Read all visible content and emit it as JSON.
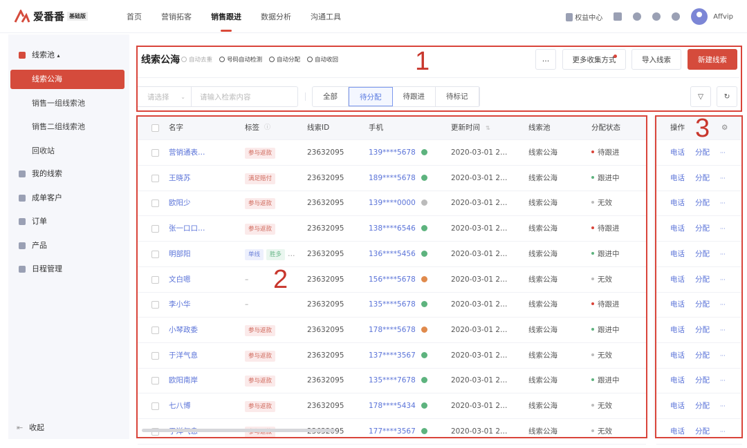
{
  "topbar": {
    "brand": "爱番番",
    "edition": "基础版",
    "nav": [
      "首页",
      "营销拓客",
      "销售跟进",
      "数据分析",
      "沟通工具"
    ],
    "active_nav": 2,
    "rights": "权益中心",
    "user": "Affvip"
  },
  "sidebar": {
    "group": "线索池",
    "group_caret": "▴",
    "subitems": [
      "线索公海",
      "销售一组线索池",
      "销售二组线索池",
      "回收站"
    ],
    "items": [
      "我的线索",
      "成单客户",
      "订单",
      "产品",
      "日程管理"
    ],
    "collapse": "收起"
  },
  "header": {
    "title": "线索公海",
    "features": [
      "自动去重",
      "号码自动检测",
      "自动分配",
      "自动收回"
    ],
    "more": "…",
    "more_collect": "更多收集方式",
    "import": "导入线索",
    "create": "新建线索"
  },
  "filter": {
    "select_placeholder": "请选择",
    "search_placeholder": "请输入检索内容",
    "tabs": [
      "全部",
      "待分配",
      "待跟进",
      "待标记"
    ],
    "active_tab": 1
  },
  "table": {
    "columns": [
      "名字",
      "标签",
      "线索ID",
      "手机",
      "更新时间",
      "线索池",
      "分配状态"
    ],
    "rows": [
      {
        "name": "营销通表…",
        "tags": [
          "参与返款"
        ],
        "id": "23632095",
        "phone": "139****5678",
        "phone_status": "valid",
        "time": "2020-03-01 2…",
        "pool": "线索公海",
        "status": "待跟进"
      },
      {
        "name": "王晓苏",
        "tags": [
          "满足赔付"
        ],
        "id": "23632095",
        "phone": "189****5678",
        "phone_status": "valid",
        "time": "2020-03-01 2…",
        "pool": "线索公海",
        "status": "跟进中"
      },
      {
        "name": "欧阳少",
        "tags": [
          "参与返款"
        ],
        "id": "23632095",
        "phone": "139****0000",
        "phone_status": "invalid",
        "time": "2020-03-01 2…",
        "pool": "线索公海",
        "status": "无效"
      },
      {
        "name": "张一口口…",
        "tags": [
          "参与返款"
        ],
        "id": "23632095",
        "phone": "138****6546",
        "phone_status": "valid",
        "time": "2020-03-01 2…",
        "pool": "线索公海",
        "status": "待跟进"
      },
      {
        "name": "明部阳",
        "tags": [
          "单线",
          "胜多",
          "…"
        ],
        "id": "23632095",
        "phone": "136****5456",
        "phone_status": "valid",
        "time": "2020-03-01 2…",
        "pool": "线索公海",
        "status": "跟进中"
      },
      {
        "name": "文白嗯",
        "tags": [
          "–"
        ],
        "id": "23632095",
        "phone": "156****5678",
        "phone_status": "warning",
        "time": "2020-03-01 2…",
        "pool": "线索公海",
        "status": "无效"
      },
      {
        "name": "李小华",
        "tags": [
          "–"
        ],
        "id": "23632095",
        "phone": "135****5678",
        "phone_status": "valid",
        "time": "2020-03-01 2…",
        "pool": "线索公海",
        "status": "待跟进"
      },
      {
        "name": "小琴政委",
        "tags": [
          "参与返款"
        ],
        "id": "23632095",
        "phone": "178****5678",
        "phone_status": "warning",
        "time": "2020-03-01 2…",
        "pool": "线索公海",
        "status": "跟进中"
      },
      {
        "name": "于洋气息",
        "tags": [
          "参与返款"
        ],
        "id": "23632095",
        "phone": "137****3567",
        "phone_status": "valid",
        "time": "2020-03-01 2…",
        "pool": "线索公海",
        "status": "无效"
      },
      {
        "name": "欧阳南岸",
        "tags": [
          "参与返款"
        ],
        "id": "23632095",
        "phone": "135****7678",
        "phone_status": "valid",
        "time": "2020-03-01 2…",
        "pool": "线索公海",
        "status": "跟进中"
      },
      {
        "name": "七八博",
        "tags": [
          "参与返款"
        ],
        "id": "23632095",
        "phone": "178****5434",
        "phone_status": "valid",
        "time": "2020-03-01 2…",
        "pool": "线索公海",
        "status": "无效"
      },
      {
        "name": "于洋气息",
        "tags": [
          "参与返款"
        ],
        "id": "23632095",
        "phone": "177****3567",
        "phone_status": "valid",
        "time": "2020-03-01 2…",
        "pool": "线索公海",
        "status": "无效"
      }
    ],
    "ops_header": "操作",
    "ops": [
      "电话",
      "分配",
      "···"
    ]
  },
  "annotations": [
    "1",
    "2",
    "3"
  ],
  "colors": {
    "accent": "#d54b3c",
    "link": "#5a73d8",
    "valid": "#5db37e",
    "warning": "#e08a4c",
    "invalid": "#bbbbbb",
    "pending": "#d9443a",
    "following": "#5db37e"
  }
}
